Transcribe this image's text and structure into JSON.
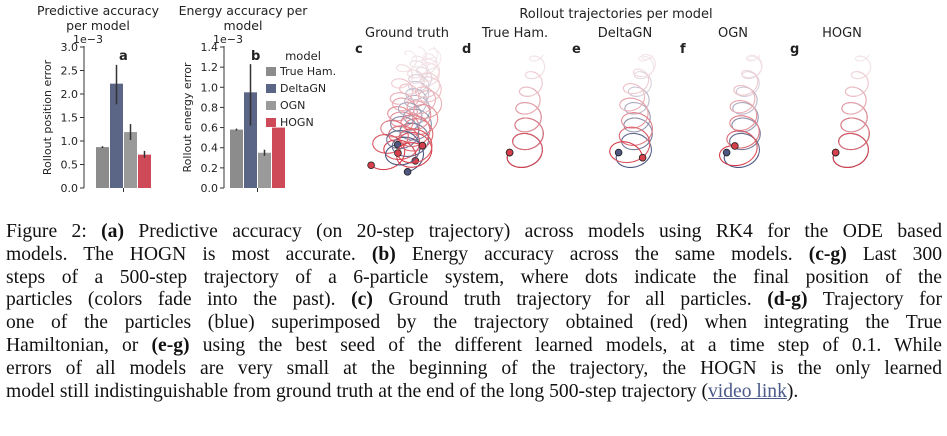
{
  "panel_letters": [
    "a",
    "b",
    "c",
    "d",
    "e",
    "f",
    "g"
  ],
  "panel_a": {
    "title_lines": [
      "Predictive accuracy",
      "per model"
    ]
  },
  "panel_b": {
    "title_lines": [
      "Energy accuracy per",
      "model"
    ]
  },
  "rollout": {
    "title": "Rollout trajectories per model",
    "subtitles": [
      "Ground truth",
      "True Ham.",
      "DeltaGN",
      "OGN",
      "HOGN"
    ]
  },
  "legend": {
    "title": "model",
    "entries": [
      {
        "label": "True Ham.",
        "color": "#8c8c8c"
      },
      {
        "label": "DeltaGN",
        "color": "#5b6585"
      },
      {
        "label": "OGN",
        "color": "#9a9a9a"
      },
      {
        "label": "HOGN",
        "color": "#cf4a58"
      }
    ]
  },
  "colors": {
    "blue": "#4d5780",
    "red": "#d6404c"
  },
  "chart_data": [
    {
      "type": "bar",
      "title": "Predictive accuracy per model",
      "ylabel": "Rollout position error",
      "y_offset_label": "1e−3",
      "ylim": [
        0,
        3.0
      ],
      "yticks": [
        0.0,
        0.5,
        1.0,
        1.5,
        2.0,
        2.5,
        3.0
      ],
      "ytick_labels": [
        "0.0",
        "0.5",
        "1.0",
        "1.5",
        "2.0",
        "2.5",
        "3.0"
      ],
      "categories": [
        "True Ham.",
        "DeltaGN",
        "OGN",
        "HOGN"
      ],
      "values": [
        0.87,
        2.22,
        1.19,
        0.71
      ],
      "errors": [
        [
          0.85,
          0.89
        ],
        [
          1.78,
          2.62
        ],
        [
          1.02,
          1.36
        ],
        [
          0.64,
          0.79
        ]
      ],
      "colors": [
        "#8c8c8c",
        "#5b6585",
        "#9a9a9a",
        "#cf4a58"
      ],
      "grid": false
    },
    {
      "type": "bar",
      "title": "Energy accuracy per model",
      "ylabel": "Rollout energy error",
      "y_offset_label": "1e−3",
      "ylim": [
        0,
        1.4
      ],
      "yticks": [
        0.0,
        0.2,
        0.4,
        0.6,
        0.8,
        1.0,
        1.2,
        1.4
      ],
      "ytick_labels": [
        "0.0",
        "0.2",
        "0.4",
        "0.6",
        "0.8",
        "1.0",
        "1.2",
        "1.4"
      ],
      "categories": [
        "True Ham.",
        "DeltaGN",
        "OGN",
        "HOGN"
      ],
      "values": [
        0.58,
        0.95,
        0.35,
        0.6
      ],
      "errors": [
        [
          0.57,
          0.59
        ],
        [
          0.62,
          1.23
        ],
        [
          0.32,
          0.38
        ],
        [
          0.6,
          0.6
        ]
      ],
      "colors": [
        "#8c8c8c",
        "#5b6585",
        "#9a9a9a",
        "#cf4a58"
      ],
      "grid": false,
      "legend": "right"
    }
  ],
  "caption": {
    "lines": [
      [
        [
          "t",
          "Figure 2: "
        ],
        [
          "b",
          "(a)"
        ],
        [
          "t",
          " Predictive accuracy (on 20-step trajectory) across models using RK4 for the ODE based"
        ]
      ],
      [
        [
          "t",
          "models. The HOGN is most accurate. "
        ],
        [
          "b",
          "(b)"
        ],
        [
          "t",
          " Energy accuracy across the same models. "
        ],
        [
          "b",
          "(c-g)"
        ],
        [
          "t",
          " Last 300"
        ]
      ],
      [
        [
          "t",
          "steps of a 500-step trajectory of a 6-particle system, where dots indicate the final position of the"
        ]
      ],
      [
        [
          "t",
          "particles (colors fade into the past). "
        ],
        [
          "b",
          "(c)"
        ],
        [
          "t",
          " Ground truth trajectory for all particles. "
        ],
        [
          "b",
          "(d-g)"
        ],
        [
          "t",
          " Trajectory for"
        ]
      ],
      [
        [
          "t",
          "one of the particles (blue) superimposed by the trajectory obtained (red) when integrating the True"
        ]
      ],
      [
        [
          "t",
          "Hamiltonian, or "
        ],
        [
          "b",
          "(e-g)"
        ],
        [
          "t",
          " using the best seed of the different learned models, at a time step of 0.1. While"
        ]
      ],
      [
        [
          "t",
          "errors of all models are very small at the beginning of the trajectory, the HOGN is the only learned"
        ]
      ],
      [
        [
          "t",
          "model still indistinguishable from ground truth at the end of the long 500-step trajectory ("
        ],
        [
          "a",
          "video link"
        ],
        [
          "t",
          ")."
        ]
      ]
    ]
  }
}
